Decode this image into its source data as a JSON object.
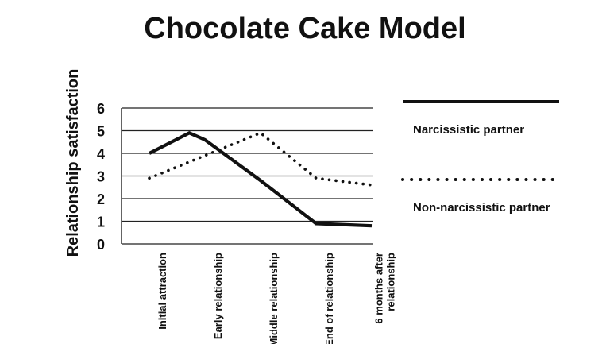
{
  "chart_data": {
    "type": "line",
    "title": "Chocolate Cake Model",
    "ylabel": "Relationship satisfaction",
    "xlabel": "",
    "categories": [
      [
        "Initial attraction"
      ],
      [
        "Early relationship"
      ],
      [
        "Middle relationship"
      ],
      [
        "End of relationship"
      ],
      [
        "6 months after",
        "relationship"
      ]
    ],
    "x_points": [
      0,
      0.72,
      1,
      2,
      3,
      4
    ],
    "ylim": [
      0,
      6
    ],
    "yticks": [
      "0",
      "1",
      "2",
      "3",
      "4",
      "5",
      "6"
    ],
    "grid": true,
    "legend_position": "right",
    "series": [
      {
        "name": "Narcissistic partner",
        "style": "solid",
        "x": [
          0,
          0.72,
          1,
          2,
          3,
          4
        ],
        "values": [
          4.0,
          4.9,
          4.6,
          2.8,
          0.9,
          0.8
        ]
      },
      {
        "name": "Non-narcissistic partner",
        "style": "dotted",
        "x": [
          0,
          1,
          2,
          3,
          4
        ],
        "values": [
          2.9,
          3.9,
          4.9,
          2.9,
          2.6
        ]
      }
    ],
    "colors": {
      "line": "#111111",
      "grid": "#222222",
      "text": "#111111"
    }
  }
}
